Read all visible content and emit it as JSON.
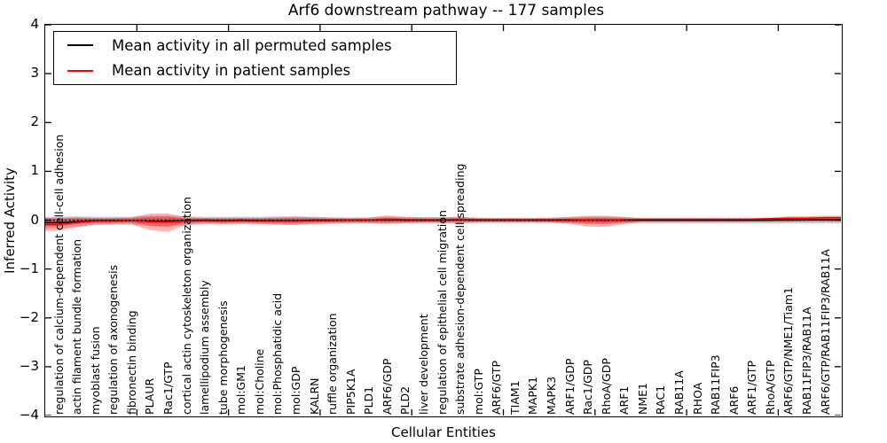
{
  "title": "Arf6 downstream pathway -- 177 samples",
  "axes": {
    "ylabel": "Inferred Activity",
    "xlabel": "Cellular Entities",
    "ylim": [
      -4,
      4
    ],
    "yticks": [
      {
        "value": 4,
        "label": "4"
      },
      {
        "value": 3,
        "label": "3"
      },
      {
        "value": 2,
        "label": "2"
      },
      {
        "value": 1,
        "label": "1"
      },
      {
        "value": 0,
        "label": "0"
      },
      {
        "value": -1,
        "label": "−1"
      },
      {
        "value": -2,
        "label": "−2"
      },
      {
        "value": -3,
        "label": "−3"
      },
      {
        "value": -4,
        "label": "−4"
      }
    ]
  },
  "legend": {
    "items": [
      {
        "label": "Mean activity in all permuted samples",
        "color": "#000000"
      },
      {
        "label": "Mean activity in patient samples",
        "color": "#ff0000"
      }
    ]
  },
  "chart_data": {
    "type": "line",
    "title": "Arf6 downstream pathway -- 177 samples",
    "xlabel": "Cellular Entities",
    "ylabel": "Inferred Activity",
    "ylim": [
      -4,
      4
    ],
    "grid": false,
    "legend_position": "upper left",
    "zero_line": {
      "y": 0,
      "style": "dotted",
      "color": "#000000"
    },
    "categories": [
      "regulation of calcium-dependent cell-cell adhesion",
      "actin filament bundle formation",
      "myoblast fusion",
      "regulation of axonogenesis",
      "fibronectin binding",
      "PLAUR",
      "Rac1/GTP",
      "cortical actin cytoskeleton organization",
      "lamellipodium assembly",
      "tube morphogenesis",
      "mol:GM1",
      "mol:Choline",
      "mol:Phosphatidic acid",
      "mol:GDP",
      "KALRN",
      "ruffle organization",
      "PIP5K1A",
      "PLD1",
      "ARF6/GDP",
      "PLD2",
      "liver development",
      "regulation of epithelial cell migration",
      "substrate adhesion-dependent cell spreading",
      "mol:GTP",
      "ARF6/GTP",
      "TIAM1",
      "MAPK1",
      "MAPK3",
      "ARF1/GDP",
      "Rac1/GDP",
      "RhoA/GDP",
      "ARF1",
      "NME1",
      "RAC1",
      "RAB11A",
      "RHOA",
      "RAB11FIP3",
      "ARF6",
      "ARF1/GTP",
      "RhoA/GTP",
      "ARF6/GTP/NME1/Tiam1",
      "RAB11FIP3/RAB11A",
      "ARF6/GTP/RAB11FIP3/RAB11A"
    ],
    "series": [
      {
        "name": "Mean activity in all permuted samples",
        "color": "#000000",
        "band_color": "rgba(110,110,110,0.30)",
        "values": [
          -0.05,
          -0.03,
          -0.01,
          -0.01,
          -0.01,
          -0.02,
          -0.02,
          -0.01,
          0,
          -0.01,
          0,
          -0.01,
          -0.01,
          -0.01,
          0,
          0,
          0,
          0,
          0.01,
          0,
          0,
          0,
          0.01,
          0,
          0,
          0,
          0,
          0,
          0,
          0,
          0,
          0,
          0,
          0,
          0,
          0,
          0,
          0,
          0,
          0,
          0.01,
          0.01,
          0.01
        ],
        "band_upper": [
          0.07,
          0.08,
          0.07,
          0.07,
          0.07,
          0.09,
          0.09,
          0.08,
          0.07,
          0.07,
          0.07,
          0.07,
          0.08,
          0.08,
          0.07,
          0.06,
          0.06,
          0.06,
          0.07,
          0.06,
          0.06,
          0.06,
          0.06,
          0.05,
          0.05,
          0.05,
          0.05,
          0.05,
          0.06,
          0.07,
          0.07,
          0.06,
          0.04,
          0.04,
          0.04,
          0.04,
          0.04,
          0.04,
          0.04,
          0.04,
          0.05,
          0.05,
          0.05
        ],
        "band_lower": [
          -0.17,
          -0.13,
          -0.1,
          -0.09,
          -0.09,
          -0.12,
          -0.13,
          -0.1,
          -0.08,
          -0.08,
          -0.08,
          -0.08,
          -0.09,
          -0.09,
          -0.08,
          -0.07,
          -0.07,
          -0.07,
          -0.08,
          -0.07,
          -0.07,
          -0.07,
          -0.07,
          -0.06,
          -0.06,
          -0.06,
          -0.06,
          -0.06,
          -0.07,
          -0.08,
          -0.08,
          -0.07,
          -0.07,
          -0.07,
          -0.07,
          -0.07,
          -0.07,
          -0.07,
          -0.07,
          -0.07,
          -0.07,
          -0.07,
          -0.07
        ]
      },
      {
        "name": "Mean activity in patient samples",
        "color": "#ff0000",
        "band_color": "rgba(255,0,0,0.30)",
        "values": [
          -0.09,
          -0.05,
          -0.02,
          -0.02,
          -0.01,
          -0.03,
          -0.04,
          -0.02,
          -0.01,
          -0.02,
          -0.01,
          -0.02,
          -0.02,
          -0.02,
          -0.01,
          -0.01,
          0,
          0,
          0.02,
          0.01,
          0.01,
          0.01,
          0.02,
          0.01,
          0.01,
          0.01,
          0.01,
          0.01,
          0.01,
          0,
          -0.01,
          0.01,
          0.02,
          0.02,
          0.02,
          0.02,
          0.02,
          0.02,
          0.02,
          0.03,
          0.04,
          0.04,
          0.05
        ],
        "band_upper": [
          0.05,
          0.06,
          0.05,
          0.05,
          0.06,
          0.13,
          0.14,
          0.06,
          0.05,
          0.05,
          0.05,
          0.05,
          0.06,
          0.07,
          0.06,
          0.05,
          0.04,
          0.05,
          0.1,
          0.07,
          0.06,
          0.06,
          0.07,
          0.05,
          0.04,
          0.04,
          0.04,
          0.05,
          0.07,
          0.09,
          0.09,
          0.07,
          0.04,
          0.04,
          0.04,
          0.04,
          0.04,
          0.04,
          0.04,
          0.05,
          0.08,
          0.08,
          0.09
        ],
        "band_lower": [
          -0.22,
          -0.15,
          -0.09,
          -0.08,
          -0.08,
          -0.2,
          -0.24,
          -0.1,
          -0.07,
          -0.08,
          -0.07,
          -0.08,
          -0.09,
          -0.1,
          -0.08,
          -0.07,
          -0.06,
          -0.06,
          -0.07,
          -0.06,
          -0.05,
          -0.05,
          -0.06,
          -0.04,
          -0.04,
          -0.04,
          -0.04,
          -0.05,
          -0.07,
          -0.13,
          -0.14,
          -0.08,
          -0.03,
          -0.03,
          -0.03,
          -0.03,
          -0.03,
          -0.03,
          -0.03,
          -0.03,
          -0.03,
          -0.02,
          -0.02
        ]
      }
    ]
  }
}
